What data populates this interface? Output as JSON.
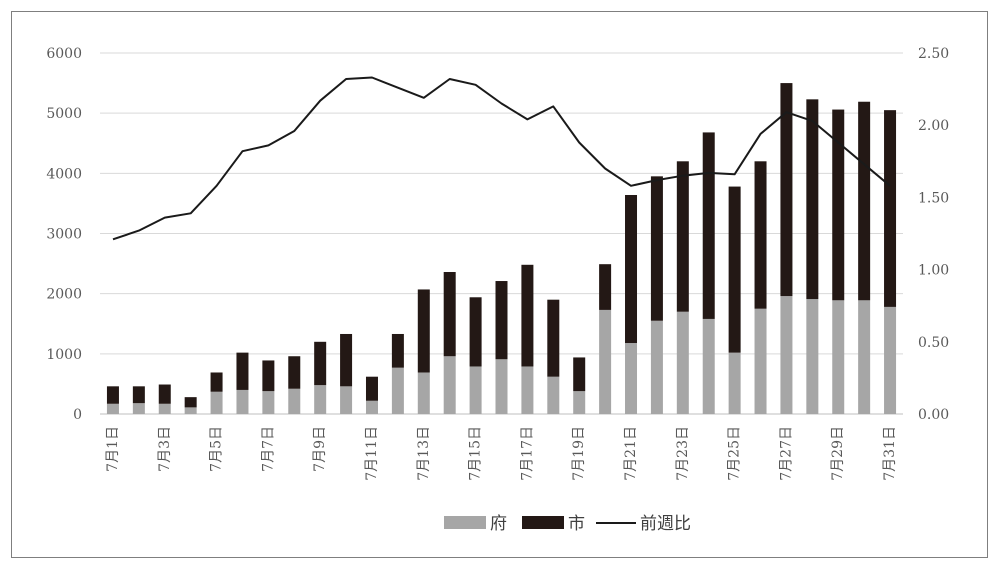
{
  "colors": {
    "fu": "#a6a6a6",
    "shi": "#231815",
    "ratio": "#1a1a1a",
    "grid": "#d9d9d9",
    "axis_text": "#595959"
  },
  "chart_data": {
    "type": "bar",
    "stacked": true,
    "title": "",
    "xlabel": "",
    "ylabel": "",
    "categories": [
      "7月1日",
      "7月2日",
      "7月3日",
      "7月4日",
      "7月5日",
      "7月6日",
      "7月7日",
      "7月8日",
      "7月9日",
      "7月10日",
      "7月11日",
      "7月12日",
      "7月13日",
      "7月14日",
      "7月15日",
      "7月16日",
      "7月17日",
      "7月18日",
      "7月19日",
      "7月20日",
      "7月21日",
      "7月22日",
      "7月23日",
      "7月24日",
      "7月25日",
      "7月26日",
      "7月27日",
      "7月28日",
      "7月29日",
      "7月30日",
      "7月31日"
    ],
    "x_tick_labels": [
      "7月1日",
      "7月3日",
      "7月5日",
      "7月7日",
      "7月9日",
      "7月11日",
      "7月13日",
      "7月15日",
      "7月17日",
      "7月19日",
      "7月21日",
      "7月23日",
      "7月25日",
      "7月27日",
      "7月29日",
      "7月31日"
    ],
    "ylim": [
      0,
      6000
    ],
    "y_ticks": [
      "0",
      "1000",
      "2000",
      "3000",
      "4000",
      "5000",
      "6000"
    ],
    "y2lim": [
      0,
      2.5
    ],
    "y2_ticks": [
      "0.00",
      "0.50",
      "1.00",
      "1.50",
      "2.00",
      "2.50"
    ],
    "grid": true,
    "legend_position": "bottom",
    "series": [
      {
        "name": "府",
        "type": "bar",
        "values": [
          170,
          180,
          170,
          110,
          370,
          400,
          380,
          420,
          480,
          460,
          220,
          770,
          690,
          960,
          790,
          910,
          790,
          620,
          380,
          1730,
          1180,
          1550,
          1700,
          1580,
          1020,
          1750,
          1960,
          1910,
          1890,
          1890,
          1780
        ]
      },
      {
        "name": "市",
        "type": "bar",
        "values": [
          290,
          280,
          320,
          170,
          320,
          620,
          510,
          540,
          720,
          870,
          400,
          560,
          1380,
          1400,
          1150,
          1300,
          1690,
          1280,
          560,
          760,
          2460,
          2400,
          2500,
          3100,
          2760,
          2450,
          3540,
          3320,
          3170,
          3300,
          3270
        ]
      },
      {
        "name": "前週比",
        "type": "line",
        "axis": "right",
        "values": [
          1.21,
          1.27,
          1.36,
          1.39,
          1.58,
          1.82,
          1.86,
          1.96,
          2.17,
          2.32,
          2.33,
          2.26,
          2.19,
          2.32,
          2.28,
          2.15,
          2.04,
          2.13,
          1.88,
          1.7,
          1.58,
          1.62,
          1.65,
          1.67,
          1.66,
          1.94,
          2.09,
          2.03,
          1.88,
          1.73,
          1.58
        ]
      }
    ]
  }
}
